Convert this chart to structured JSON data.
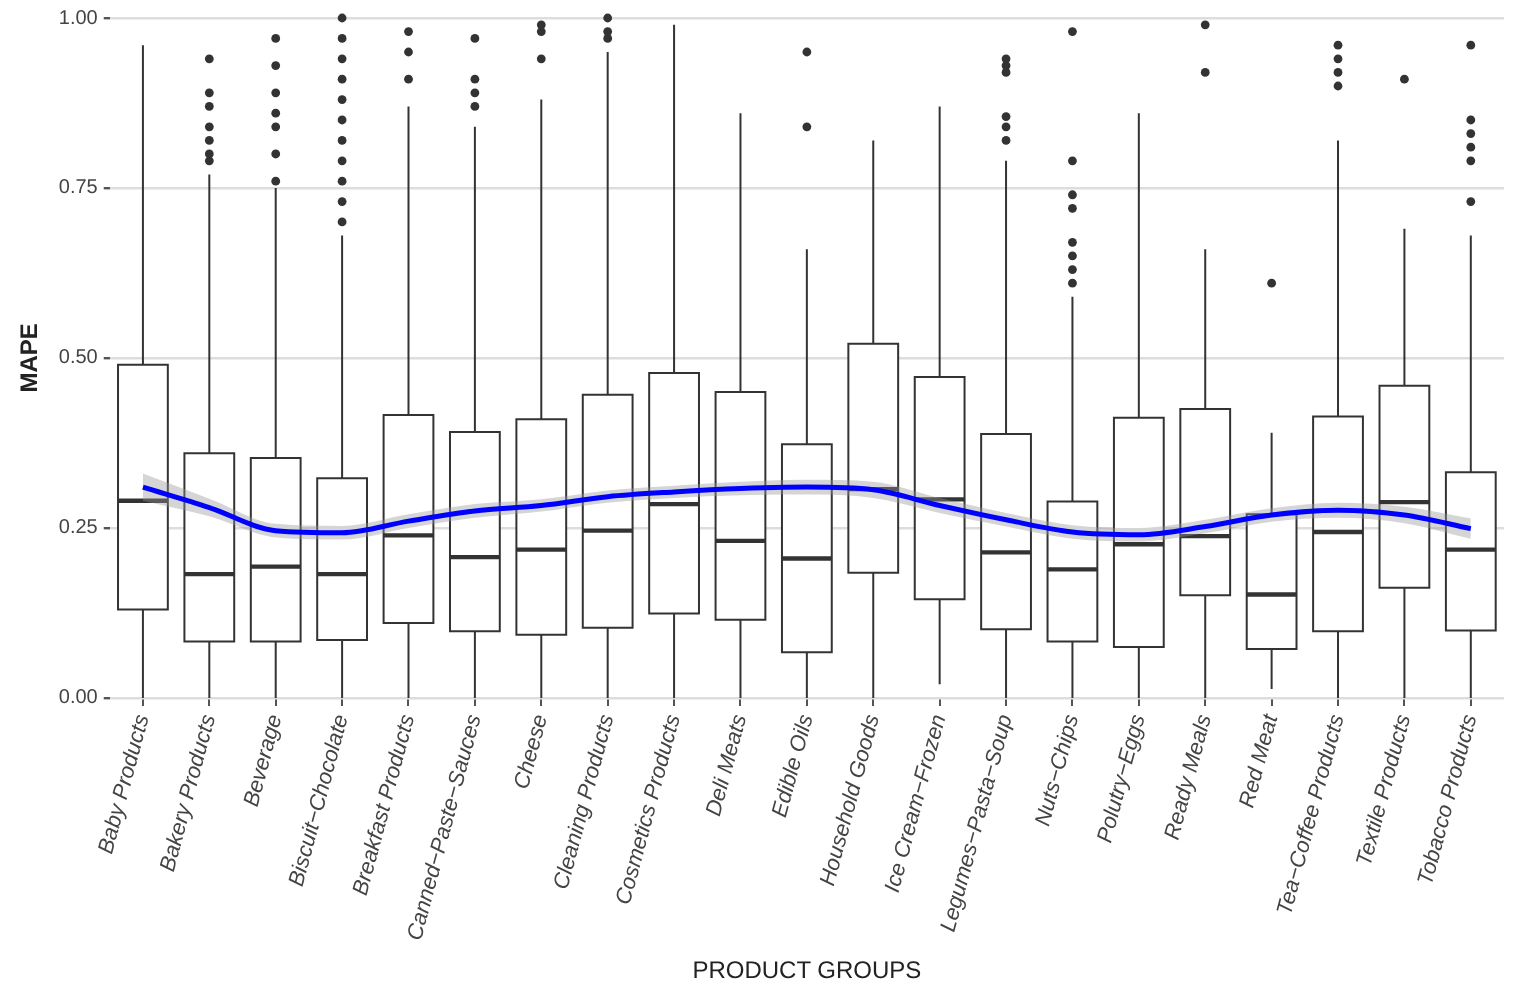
{
  "chart_data": {
    "type": "box",
    "xlabel": "PRODUCT GROUPS",
    "ylabel": "MAPE",
    "categories": [
      "Baby Products",
      "Bakery Products",
      "Beverage",
      "Biscuit−Chocolate",
      "Breakfast Products",
      "Canned−Paste−Sauces",
      "Cheese",
      "Cleaning Products",
      "Cosmetics Products",
      "Deli Meats",
      "Edible Oils",
      "Household Goods",
      "Ice Cream−Frozen",
      "Legumes−Pasta−Soup",
      "Nuts−Chips",
      "Polutry−Eggs",
      "Ready Meals",
      "Red Meat",
      "Tea−Coffee Products",
      "Textile Products",
      "Tobacco Products"
    ],
    "ylim": [
      0,
      1
    ],
    "yticks": [
      {
        "value": 0,
        "label": "0.00"
      },
      {
        "value": 0.25,
        "label": "0.25"
      },
      {
        "value": 0.5,
        "label": "0.50"
      },
      {
        "value": 0.75,
        "label": "0.75"
      },
      {
        "value": 1,
        "label": "1.00"
      }
    ],
    "grid": "y",
    "series": [
      {
        "color": "#333333",
        "boxes": [
          {
            "low": 0,
            "q1": 0.13,
            "median": 0.29,
            "q3": 0.49,
            "high": 0.96
          },
          {
            "low": 0,
            "q1": 0.083,
            "median": 0.182,
            "q3": 0.36,
            "high": 0.77,
            "outliers": [
              0.79,
              0.8,
              0.82,
              0.84,
              0.87,
              0.89,
              0.94
            ]
          },
          {
            "low": 0,
            "q1": 0.083,
            "median": 0.193,
            "q3": 0.353,
            "high": 0.75,
            "outliers": [
              0.76,
              0.8,
              0.84,
              0.86,
              0.89,
              0.93,
              0.97
            ]
          },
          {
            "low": 0,
            "q1": 0.085,
            "median": 0.182,
            "q3": 0.323,
            "high": 0.68,
            "outliers": [
              0.7,
              0.73,
              0.76,
              0.79,
              0.82,
              0.85,
              0.88,
              0.91,
              0.94,
              0.97,
              1
            ]
          },
          {
            "low": 0,
            "q1": 0.11,
            "median": 0.239,
            "q3": 0.416,
            "high": 0.87,
            "outliers": [
              0.91,
              0.95,
              0.98
            ]
          },
          {
            "low": 0,
            "q1": 0.098,
            "median": 0.207,
            "q3": 0.391,
            "high": 0.84,
            "outliers": [
              0.87,
              0.89,
              0.91,
              0.97
            ]
          },
          {
            "low": 0,
            "q1": 0.093,
            "median": 0.218,
            "q3": 0.41,
            "high": 0.88,
            "outliers": [
              0.94,
              0.98,
              0.99
            ]
          },
          {
            "low": 0,
            "q1": 0.103,
            "median": 0.246,
            "q3": 0.446,
            "high": 0.95,
            "outliers": [
              0.97,
              0.98,
              1
            ]
          },
          {
            "low": 0,
            "q1": 0.124,
            "median": 0.285,
            "q3": 0.478,
            "high": 0.99
          },
          {
            "low": 0,
            "q1": 0.115,
            "median": 0.231,
            "q3": 0.45,
            "high": 0.86
          },
          {
            "low": 0,
            "q1": 0.067,
            "median": 0.205,
            "q3": 0.373,
            "high": 0.66,
            "outliers": [
              0.84,
              0.95
            ]
          },
          {
            "low": 0,
            "q1": 0.184,
            "median": 0.307,
            "q3": 0.521,
            "high": 0.82
          },
          {
            "low": 0.02,
            "q1": 0.145,
            "median": 0.292,
            "q3": 0.472,
            "high": 0.87
          },
          {
            "low": 0,
            "q1": 0.101,
            "median": 0.214,
            "q3": 0.388,
            "high": 0.79,
            "outliers": [
              0.82,
              0.84,
              0.855,
              0.92,
              0.93,
              0.94
            ]
          },
          {
            "low": 0,
            "q1": 0.083,
            "median": 0.189,
            "q3": 0.289,
            "high": 0.59,
            "outliers": [
              0.61,
              0.63,
              0.65,
              0.67,
              0.72,
              0.74,
              0.79,
              0.98
            ]
          },
          {
            "low": 0,
            "q1": 0.075,
            "median": 0.226,
            "q3": 0.412,
            "high": 0.86
          },
          {
            "low": 0,
            "q1": 0.151,
            "median": 0.238,
            "q3": 0.425,
            "high": 0.66,
            "outliers": [
              0.92,
              0.99
            ]
          },
          {
            "low": 0.013,
            "q1": 0.072,
            "median": 0.152,
            "q3": 0.27,
            "high": 0.39,
            "outliers": [
              0.61
            ]
          },
          {
            "low": 0,
            "q1": 0.098,
            "median": 0.244,
            "q3": 0.414,
            "high": 0.82,
            "outliers": [
              0.9,
              0.92,
              0.94,
              0.96
            ]
          },
          {
            "low": 0,
            "q1": 0.162,
            "median": 0.288,
            "q3": 0.459,
            "high": 0.69,
            "outliers": [
              0.91
            ]
          },
          {
            "low": 0,
            "q1": 0.099,
            "median": 0.218,
            "q3": 0.332,
            "high": 0.68,
            "outliers": [
              0.73,
              0.79,
              0.81,
              0.83,
              0.85,
              0.96
            ]
          }
        ]
      },
      {
        "type": "line",
        "color": "#0000ff",
        "values": [
          0.31,
          0.28,
          0.246,
          0.243,
          0.26,
          0.275,
          0.283,
          0.296,
          0.303,
          0.308,
          0.31,
          0.306,
          0.283,
          0.262,
          0.244,
          0.24,
          0.252,
          0.269,
          0.276,
          0.269,
          0.249
        ],
        "lower": [
          0.29,
          0.267,
          0.236,
          0.233,
          0.25,
          0.265,
          0.274,
          0.287,
          0.294,
          0.298,
          0.299,
          0.294,
          0.272,
          0.252,
          0.234,
          0.23,
          0.242,
          0.259,
          0.265,
          0.257,
          0.234
        ],
        "upper": [
          0.33,
          0.293,
          0.256,
          0.253,
          0.27,
          0.285,
          0.292,
          0.305,
          0.312,
          0.318,
          0.321,
          0.318,
          0.294,
          0.272,
          0.254,
          0.25,
          0.262,
          0.279,
          0.287,
          0.281,
          0.264
        ]
      }
    ]
  }
}
